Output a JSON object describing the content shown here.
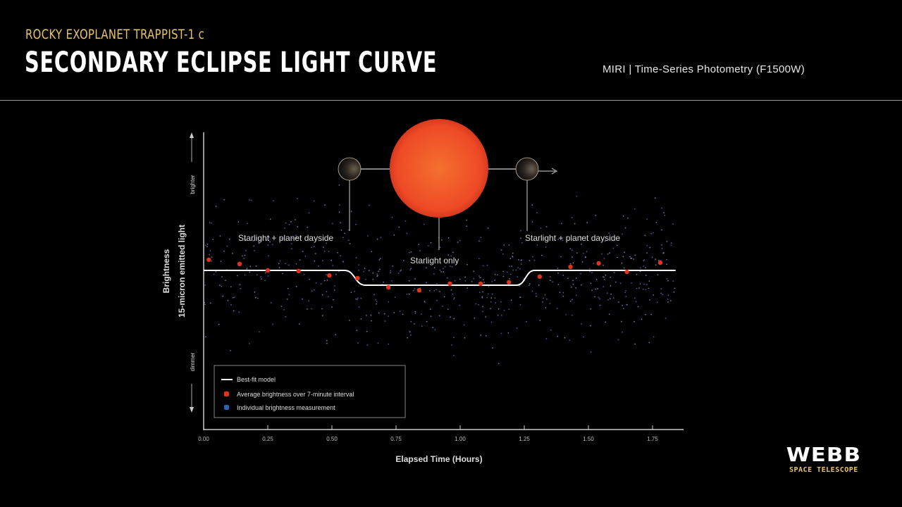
{
  "header": {
    "kicker": "ROCKY EXOPLANET TRAPPIST-1 c",
    "title": "SECONDARY ECLIPSE LIGHT CURVE",
    "instrument": "MIRI | Time-Series Photometry (F1500W)"
  },
  "logo": {
    "name": "WEBB",
    "tagline": "SPACE TELESCOPE"
  },
  "colors": {
    "background": "#000000",
    "accent": "#e9c46a",
    "average_points": "#e0341c",
    "individual_points": "#4a5fb0",
    "model": "#ffffff",
    "star": "#f0522a"
  },
  "illustration": {
    "label_left": "Starlight + planet dayside",
    "label_center": "Starlight only",
    "label_right": "Starlight + planet dayside"
  },
  "chart_data": {
    "type": "scatter",
    "xlabel": "Elapsed Time (Hours)",
    "ylabel": "Brightness",
    "ylabel_sub": "15-micron emitted light",
    "y_high_label": "brighter",
    "y_low_label": "dimmer",
    "x_ticks": [
      "0.00",
      "0.25",
      "0.50",
      "0.75",
      "1.00",
      "1.25",
      "1.50",
      "1.75"
    ],
    "xlim": [
      0,
      1.87
    ],
    "ylim": [
      0,
      100
    ],
    "y_numeric_ticks": false,
    "grid": false,
    "legend_position": "bottom-left",
    "legend": [
      "Best-fit model",
      "Average brightness over 7-minute interval",
      "Individual brightness measurement"
    ],
    "model": {
      "name": "Best-fit model",
      "x": [
        0.0,
        0.55,
        0.63,
        1.22,
        1.29,
        1.84
      ],
      "y": [
        53.8,
        53.8,
        48.8,
        48.8,
        53.8,
        53.8
      ]
    },
    "averages": {
      "name": "Average brightness over 7-minute interval",
      "x": [
        0.02,
        0.14,
        0.25,
        0.37,
        0.49,
        0.6,
        0.72,
        0.84,
        0.96,
        1.08,
        1.19,
        1.31,
        1.43,
        1.54,
        1.65,
        1.78
      ],
      "y": [
        57.4,
        56.0,
        53.8,
        53.6,
        52.1,
        51.2,
        48.1,
        47.1,
        49.3,
        49.3,
        49.8,
        51.7,
        55.0,
        56.2,
        53.3,
        56.4
      ]
    },
    "individual": {
      "name": "Individual brightness measurement"
    }
  }
}
